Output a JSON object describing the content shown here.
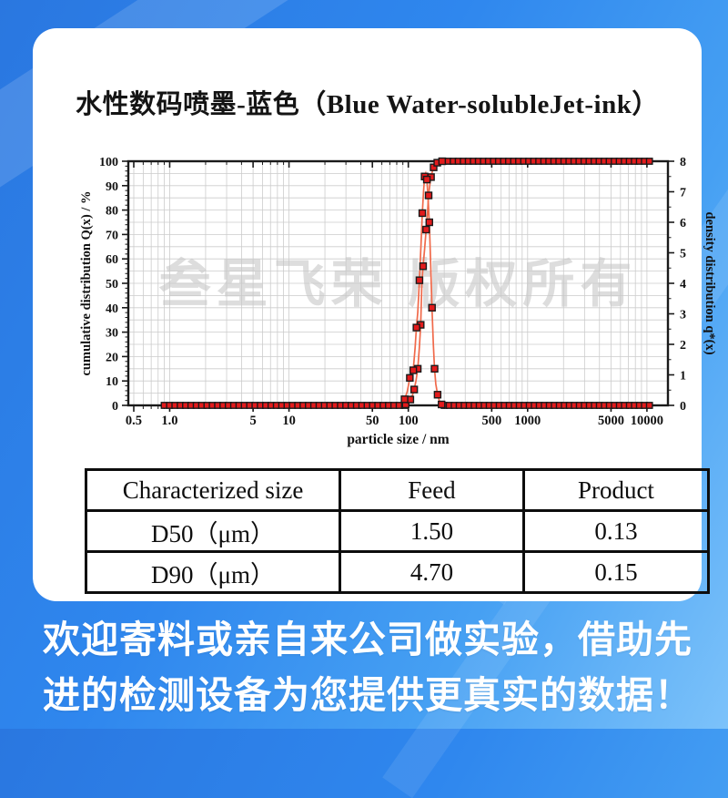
{
  "page": {
    "title": "水性数码喷墨-蓝色（Blue Water-solubleJet-ink）"
  },
  "chart_data": {
    "type": "line",
    "title": "",
    "xlabel": "particle size / nm",
    "ylabel_left": "cumulative distribution Q(x) / %",
    "ylabel_right": "density distribution q*(x)",
    "x_scale": "log",
    "x_range": [
      0.45,
      15000
    ],
    "x_ticks": [
      0.5,
      1.0,
      5,
      10,
      50,
      100,
      500,
      1000,
      5000,
      10000
    ],
    "x_tick_labels": [
      "0.5",
      "1.0",
      "5",
      "10",
      "50",
      "100",
      "500",
      "1000",
      "5000",
      "10000"
    ],
    "y_left": {
      "min": 0,
      "max": 100,
      "major_step": 10,
      "grid_step": 5,
      "minor_tick_step": 2
    },
    "y_right": {
      "min": 0,
      "max": 8,
      "major_step": 1,
      "minor_tick_step": 0.5
    },
    "grid": true,
    "watermark": "叁星飞荣 版权所有",
    "series": [
      {
        "name": "cumulative distribution Q(x)",
        "axis": "left",
        "points": [
          [
            90,
            0
          ],
          [
            95,
            0.4
          ],
          [
            100,
            1.2
          ],
          [
            104,
            2.4
          ],
          [
            108,
            4
          ],
          [
            112,
            6.5
          ],
          [
            116,
            10
          ],
          [
            120,
            15
          ],
          [
            124,
            24
          ],
          [
            127,
            33
          ],
          [
            130,
            50
          ],
          [
            133,
            57
          ],
          [
            137,
            64
          ],
          [
            141,
            72
          ],
          [
            145,
            79
          ],
          [
            148,
            86
          ],
          [
            151,
            90
          ],
          [
            155,
            93.5
          ],
          [
            159,
            95.8
          ],
          [
            163,
            97.5
          ],
          [
            168,
            98.7
          ],
          [
            175,
            99.4
          ],
          [
            183,
            99.8
          ],
          [
            192,
            100
          ]
        ]
      },
      {
        "name": "density distribution q*(x)",
        "axis": "right",
        "points": [
          [
            88,
            0.05
          ],
          [
            93,
            0.2
          ],
          [
            98,
            0.45
          ],
          [
            103,
            0.9
          ],
          [
            107,
            1.1
          ],
          [
            110,
            1.15
          ],
          [
            114,
            1.9
          ],
          [
            117,
            2.55
          ],
          [
            120,
            3.05
          ],
          [
            124,
            4.1
          ],
          [
            128,
            5.3
          ],
          [
            131,
            6.3
          ],
          [
            134,
            7.0
          ],
          [
            137,
            7.5
          ],
          [
            140,
            7.6
          ],
          [
            143,
            7.4
          ],
          [
            146,
            6.9
          ],
          [
            150,
            6.0
          ],
          [
            154,
            4.6
          ],
          [
            158,
            3.2
          ],
          [
            162,
            2.0
          ],
          [
            166,
            1.2
          ],
          [
            170,
            0.7
          ],
          [
            176,
            0.35
          ],
          [
            183,
            0.12
          ],
          [
            190,
            0.03
          ],
          [
            196,
            0
          ]
        ]
      }
    ],
    "flat_marker_rows": [
      {
        "label": "baseline-zero",
        "axis": "left",
        "value": 0,
        "from": 0.9,
        "to": 93,
        "count": 46
      },
      {
        "label": "cumulative-100",
        "axis": "left",
        "value": 100,
        "from": 196,
        "to": 10500,
        "count": 42
      },
      {
        "label": "density-zero",
        "axis": "right",
        "value": 0,
        "from": 200,
        "to": 10500,
        "count": 42
      }
    ],
    "colors": {
      "line": "#f0694a",
      "marker": "#e31b1c",
      "marker_edge": "#1a1a1a",
      "grid": "#cccccc",
      "frame": "#1a1a1a",
      "watermark": "#c6c6c6",
      "tick_label": "#111111"
    }
  },
  "table": {
    "headers": [
      "Characterized size",
      "Feed",
      "Product"
    ],
    "rows": [
      [
        "D50（μm）",
        "1.50",
        "0.13"
      ],
      [
        "D90（μm）",
        "4.70",
        "0.15"
      ]
    ]
  },
  "footer": {
    "line1": "欢迎寄料或亲自来公司做实验，借助先",
    "line2": "进的检测设备为您提供更真实的数据！"
  }
}
